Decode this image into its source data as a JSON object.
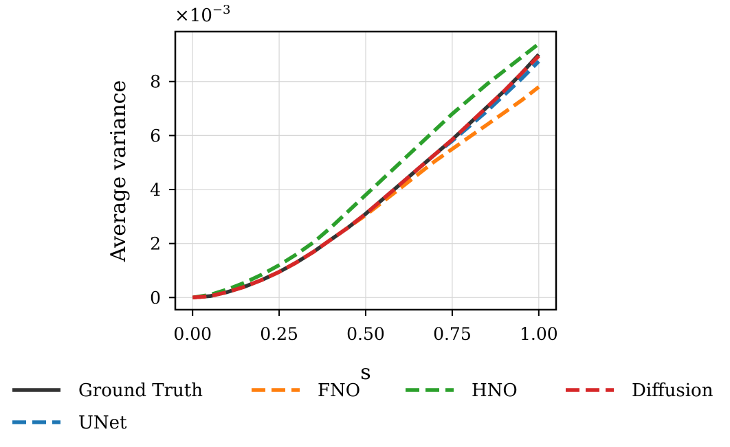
{
  "chart_data": {
    "type": "line",
    "title": "",
    "xlabel": "s",
    "ylabel": "Average variance",
    "y_multiplier_label": "×10",
    "y_multiplier_exponent": "−3",
    "xlim": [
      -0.05,
      1.05
    ],
    "ylim": [
      -0.45,
      9.85
    ],
    "xticks": [
      0.0,
      0.25,
      0.5,
      0.75,
      1.0
    ],
    "xtick_labels": [
      "0.00",
      "0.25",
      "0.50",
      "0.75",
      "1.00"
    ],
    "yticks": [
      0,
      2,
      4,
      6,
      8
    ],
    "ytick_labels": [
      "0",
      "2",
      "4",
      "6",
      "8"
    ],
    "grid": true,
    "legend_position": "below plot, 4 columns",
    "x": [
      0.0,
      0.05,
      0.1,
      0.15,
      0.2,
      0.25,
      0.3,
      0.35,
      0.4,
      0.45,
      0.5,
      0.55,
      0.6,
      0.65,
      0.7,
      0.75,
      0.8,
      0.85,
      0.9,
      0.95,
      1.0
    ],
    "series": [
      {
        "name": "Ground Truth",
        "color": "#333333",
        "style": "solid",
        "values": [
          0.0,
          0.05,
          0.2,
          0.4,
          0.65,
          0.95,
          1.3,
          1.7,
          2.15,
          2.6,
          3.1,
          3.65,
          4.2,
          4.75,
          5.3,
          5.85,
          6.45,
          7.05,
          7.65,
          8.3,
          9.0
        ]
      },
      {
        "name": "FNO",
        "color": "#ff7f0e",
        "style": "dashed",
        "values": [
          0.0,
          0.05,
          0.2,
          0.4,
          0.65,
          0.95,
          1.3,
          1.7,
          2.15,
          2.6,
          3.05,
          3.55,
          4.05,
          4.55,
          5.05,
          5.5,
          5.95,
          6.4,
          6.85,
          7.3,
          7.8
        ]
      },
      {
        "name": "HNO",
        "color": "#2ca02c",
        "style": "dashed",
        "values": [
          0.0,
          0.1,
          0.3,
          0.55,
          0.85,
          1.2,
          1.6,
          2.05,
          2.6,
          3.2,
          3.8,
          4.4,
          5.0,
          5.6,
          6.2,
          6.8,
          7.35,
          7.9,
          8.4,
          8.9,
          9.4
        ]
      },
      {
        "name": "Diffusion",
        "color": "#d62728",
        "style": "dashed",
        "values": [
          0.0,
          0.05,
          0.2,
          0.4,
          0.65,
          0.95,
          1.3,
          1.7,
          2.15,
          2.6,
          3.1,
          3.65,
          4.2,
          4.75,
          5.3,
          5.85,
          6.45,
          7.05,
          7.65,
          8.3,
          8.95
        ]
      },
      {
        "name": "UNet",
        "color": "#1f77b4",
        "style": "dashed",
        "values": [
          0.0,
          0.05,
          0.2,
          0.4,
          0.65,
          0.95,
          1.3,
          1.7,
          2.15,
          2.6,
          3.1,
          3.65,
          4.2,
          4.75,
          5.3,
          5.8,
          6.35,
          6.9,
          7.5,
          8.1,
          8.75
        ]
      }
    ],
    "legend_order": [
      "Ground Truth",
      "FNO",
      "HNO",
      "Diffusion",
      "UNet"
    ]
  }
}
